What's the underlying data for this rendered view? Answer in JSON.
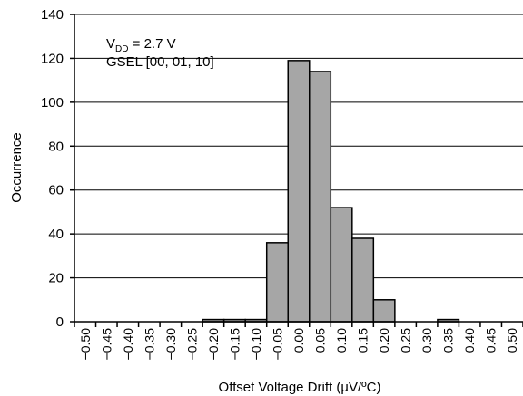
{
  "chart_data": {
    "type": "bar",
    "title": "",
    "xlabel": "Offset Voltage Drift (µV/ºC)",
    "ylabel": "Occurrence",
    "ylim": [
      0,
      140
    ],
    "yticks": [
      "0",
      "20",
      "40",
      "60",
      "80",
      "100",
      "120",
      "140"
    ],
    "categories": [
      "−0.50",
      "−0.45",
      "−0.40",
      "−0.35",
      "−0.30",
      "−0.25",
      "−0.20",
      "−0.15",
      "−0.10",
      "−0.05",
      "0.00",
      "0.05",
      "0.10",
      "0.15",
      "0.20",
      "0.25",
      "0.30",
      "0.35",
      "0.40",
      "0.45",
      "0.50"
    ],
    "values": [
      0,
      0,
      0,
      0,
      0,
      0,
      1,
      1,
      1,
      36,
      119,
      114,
      52,
      38,
      10,
      0,
      0,
      1,
      0,
      0,
      0
    ],
    "grid": true,
    "bar_color": "#a6a6a6",
    "annotation": {
      "line1_prefix": "V",
      "line1_sub": "DD",
      "line1_suffix": " = 2.7 V",
      "line2": "GSEL [00, 01, 10]"
    }
  }
}
